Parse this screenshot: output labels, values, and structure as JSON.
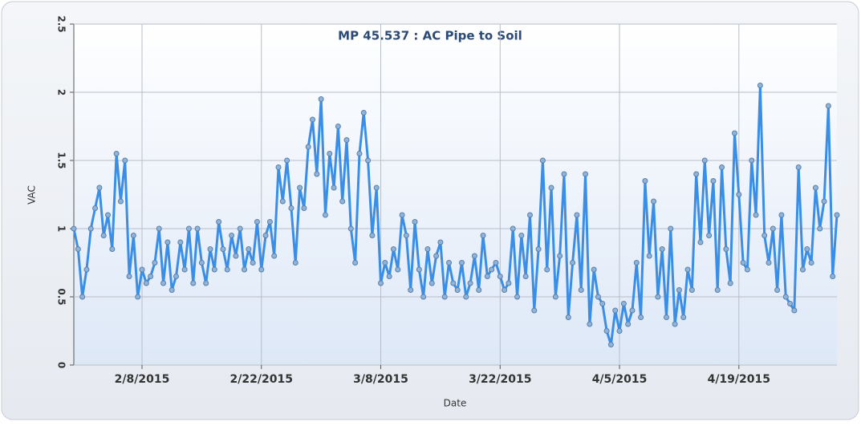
{
  "chart_data": {
    "type": "line",
    "title": "MP 45.537 : AC Pipe to Soil",
    "x_label": "Date",
    "y_label": "VAC",
    "x": [
      "2015-01-31T00:00",
      "2015-01-31T12:00",
      "2015-02-01T00:00",
      "2015-02-01T12:00",
      "2015-02-02T00:00",
      "2015-02-02T12:00",
      "2015-02-03T00:00",
      "2015-02-03T12:00",
      "2015-02-04T00:00",
      "2015-02-04T12:00",
      "2015-02-05T00:00",
      "2015-02-05T12:00",
      "2015-02-06T00:00",
      "2015-02-06T12:00",
      "2015-02-07T00:00",
      "2015-02-07T12:00",
      "2015-02-08T00:00",
      "2015-02-08T12:00",
      "2015-02-09T00:00",
      "2015-02-09T12:00",
      "2015-02-10T00:00",
      "2015-02-10T12:00",
      "2015-02-11T00:00",
      "2015-02-11T12:00",
      "2015-02-12T00:00",
      "2015-02-12T12:00",
      "2015-02-13T00:00",
      "2015-02-13T12:00",
      "2015-02-14T00:00",
      "2015-02-14T12:00",
      "2015-02-15T00:00",
      "2015-02-15T12:00",
      "2015-02-16T00:00",
      "2015-02-16T12:00",
      "2015-02-17T00:00",
      "2015-02-17T12:00",
      "2015-02-18T00:00",
      "2015-02-18T12:00",
      "2015-02-19T00:00",
      "2015-02-19T12:00",
      "2015-02-20T00:00",
      "2015-02-20T12:00",
      "2015-02-21T00:00",
      "2015-02-21T12:00",
      "2015-02-22T00:00",
      "2015-02-22T12:00",
      "2015-02-23T00:00",
      "2015-02-23T12:00",
      "2015-02-24T00:00",
      "2015-02-24T12:00",
      "2015-02-25T00:00",
      "2015-02-25T12:00",
      "2015-02-26T00:00",
      "2015-02-26T12:00",
      "2015-02-27T00:00",
      "2015-02-27T12:00",
      "2015-02-28T00:00",
      "2015-02-28T12:00",
      "2015-03-01T00:00",
      "2015-03-01T12:00",
      "2015-03-02T00:00",
      "2015-03-02T12:00",
      "2015-03-03T00:00",
      "2015-03-03T12:00",
      "2015-03-04T00:00",
      "2015-03-04T12:00",
      "2015-03-05T00:00",
      "2015-03-05T12:00",
      "2015-03-06T00:00",
      "2015-03-06T12:00",
      "2015-03-07T00:00",
      "2015-03-07T12:00",
      "2015-03-08T00:00",
      "2015-03-08T12:00",
      "2015-03-09T00:00",
      "2015-03-09T12:00",
      "2015-03-10T00:00",
      "2015-03-10T12:00",
      "2015-03-11T00:00",
      "2015-03-11T12:00",
      "2015-03-12T00:00",
      "2015-03-12T12:00",
      "2015-03-13T00:00",
      "2015-03-13T12:00",
      "2015-03-14T00:00",
      "2015-03-14T12:00",
      "2015-03-15T00:00",
      "2015-03-15T12:00",
      "2015-03-16T00:00",
      "2015-03-16T12:00",
      "2015-03-17T00:00",
      "2015-03-17T12:00",
      "2015-03-18T00:00",
      "2015-03-18T12:00",
      "2015-03-19T00:00",
      "2015-03-19T12:00",
      "2015-03-20T00:00",
      "2015-03-20T12:00",
      "2015-03-21T00:00",
      "2015-03-21T12:00",
      "2015-03-22T00:00",
      "2015-03-22T12:00",
      "2015-03-23T00:00",
      "2015-03-23T12:00",
      "2015-03-24T00:00",
      "2015-03-24T12:00",
      "2015-03-25T00:00",
      "2015-03-25T12:00",
      "2015-03-26T00:00",
      "2015-03-26T12:00",
      "2015-03-27T00:00",
      "2015-03-27T12:00",
      "2015-03-28T00:00",
      "2015-03-28T12:00",
      "2015-03-29T00:00",
      "2015-03-29T12:00",
      "2015-03-30T00:00",
      "2015-03-30T12:00",
      "2015-03-31T00:00",
      "2015-03-31T12:00",
      "2015-04-01T00:00",
      "2015-04-01T12:00",
      "2015-04-02T00:00",
      "2015-04-02T12:00",
      "2015-04-03T00:00",
      "2015-04-03T12:00",
      "2015-04-04T00:00",
      "2015-04-04T12:00",
      "2015-04-05T00:00",
      "2015-04-05T12:00",
      "2015-04-06T00:00",
      "2015-04-06T12:00",
      "2015-04-07T00:00",
      "2015-04-07T12:00",
      "2015-04-08T00:00",
      "2015-04-08T12:00",
      "2015-04-09T00:00",
      "2015-04-09T12:00",
      "2015-04-10T00:00",
      "2015-04-10T12:00",
      "2015-04-11T00:00",
      "2015-04-11T12:00",
      "2015-04-12T00:00",
      "2015-04-12T12:00",
      "2015-04-13T00:00",
      "2015-04-13T12:00",
      "2015-04-14T00:00",
      "2015-04-14T12:00",
      "2015-04-15T00:00",
      "2015-04-15T12:00",
      "2015-04-16T00:00",
      "2015-04-16T12:00",
      "2015-04-17T00:00",
      "2015-04-17T12:00",
      "2015-04-18T00:00",
      "2015-04-18T12:00",
      "2015-04-19T00:00",
      "2015-04-19T12:00",
      "2015-04-20T00:00",
      "2015-04-20T12:00",
      "2015-04-21T00:00",
      "2015-04-21T12:00",
      "2015-04-22T00:00",
      "2015-04-22T12:00",
      "2015-04-23T00:00",
      "2015-04-23T12:00",
      "2015-04-24T00:00",
      "2015-04-24T12:00",
      "2015-04-25T00:00",
      "2015-04-25T12:00",
      "2015-04-26T00:00",
      "2015-04-26T12:00",
      "2015-04-27T00:00",
      "2015-04-27T12:00",
      "2015-04-28T00:00",
      "2015-04-28T12:00",
      "2015-04-29T00:00",
      "2015-04-29T12:00",
      "2015-04-30T00:00",
      "2015-04-30T12:00"
    ],
    "series": [
      {
        "name": "VAC",
        "color": "#3b8ee6",
        "marker_color": "#5a7fa8",
        "values": [
          1.0,
          0.85,
          0.5,
          0.7,
          1.0,
          1.15,
          1.3,
          0.95,
          1.1,
          0.85,
          1.55,
          1.2,
          1.5,
          0.65,
          0.95,
          0.5,
          0.7,
          0.6,
          0.65,
          0.75,
          1.0,
          0.6,
          0.9,
          0.55,
          0.65,
          0.9,
          0.7,
          1.0,
          0.6,
          1.0,
          0.75,
          0.6,
          0.85,
          0.7,
          1.05,
          0.85,
          0.7,
          0.95,
          0.8,
          1.0,
          0.7,
          0.85,
          0.75,
          1.05,
          0.7,
          0.95,
          1.05,
          0.8,
          1.45,
          1.2,
          1.5,
          1.15,
          0.75,
          1.3,
          1.15,
          1.6,
          1.8,
          1.4,
          1.95,
          1.1,
          1.55,
          1.3,
          1.75,
          1.2,
          1.65,
          1.0,
          0.75,
          1.55,
          1.85,
          1.5,
          0.95,
          1.3,
          0.6,
          0.75,
          0.65,
          0.85,
          0.7,
          1.1,
          0.95,
          0.55,
          1.05,
          0.7,
          0.5,
          0.85,
          0.6,
          0.8,
          0.9,
          0.5,
          0.75,
          0.6,
          0.55,
          0.75,
          0.5,
          0.6,
          0.8,
          0.55,
          0.95,
          0.65,
          0.7,
          0.75,
          0.65,
          0.55,
          0.6,
          1.0,
          0.5,
          0.95,
          0.65,
          1.1,
          0.4,
          0.85,
          1.5,
          0.7,
          1.3,
          0.5,
          0.8,
          1.4,
          0.35,
          0.75,
          1.1,
          0.55,
          1.4,
          0.3,
          0.7,
          0.5,
          0.45,
          0.25,
          0.15,
          0.4,
          0.25,
          0.45,
          0.3,
          0.4,
          0.75,
          0.35,
          1.35,
          0.8,
          1.2,
          0.5,
          0.85,
          0.35,
          1.0,
          0.3,
          0.55,
          0.35,
          0.7,
          0.55,
          1.4,
          0.9,
          1.5,
          0.95,
          1.35,
          0.55,
          1.45,
          0.85,
          0.6,
          1.7,
          1.25,
          0.75,
          0.7,
          1.5,
          1.1,
          2.05,
          0.95,
          0.75,
          1.0,
          0.55,
          1.1,
          0.5,
          0.45,
          0.4,
          1.45,
          0.7,
          0.85,
          0.75,
          1.3,
          1.0,
          1.2,
          1.9,
          0.65,
          1.1
        ]
      }
    ],
    "xlim": [
      "2015-01-31T00:00",
      "2015-04-30T12:00"
    ],
    "xticks": [
      {
        "value": "2015-02-08T00:00",
        "label": "2/8/2015"
      },
      {
        "value": "2015-02-22T00:00",
        "label": "2/22/2015"
      },
      {
        "value": "2015-03-08T00:00",
        "label": "3/8/2015"
      },
      {
        "value": "2015-03-22T00:00",
        "label": "3/22/2015"
      },
      {
        "value": "2015-04-05T00:00",
        "label": "4/5/2015"
      },
      {
        "value": "2015-04-19T00:00",
        "label": "4/19/2015"
      }
    ],
    "ylim": [
      0,
      2.5
    ],
    "yticks": [
      0,
      0.5,
      1,
      1.5,
      2,
      2.5
    ],
    "grid": true
  }
}
